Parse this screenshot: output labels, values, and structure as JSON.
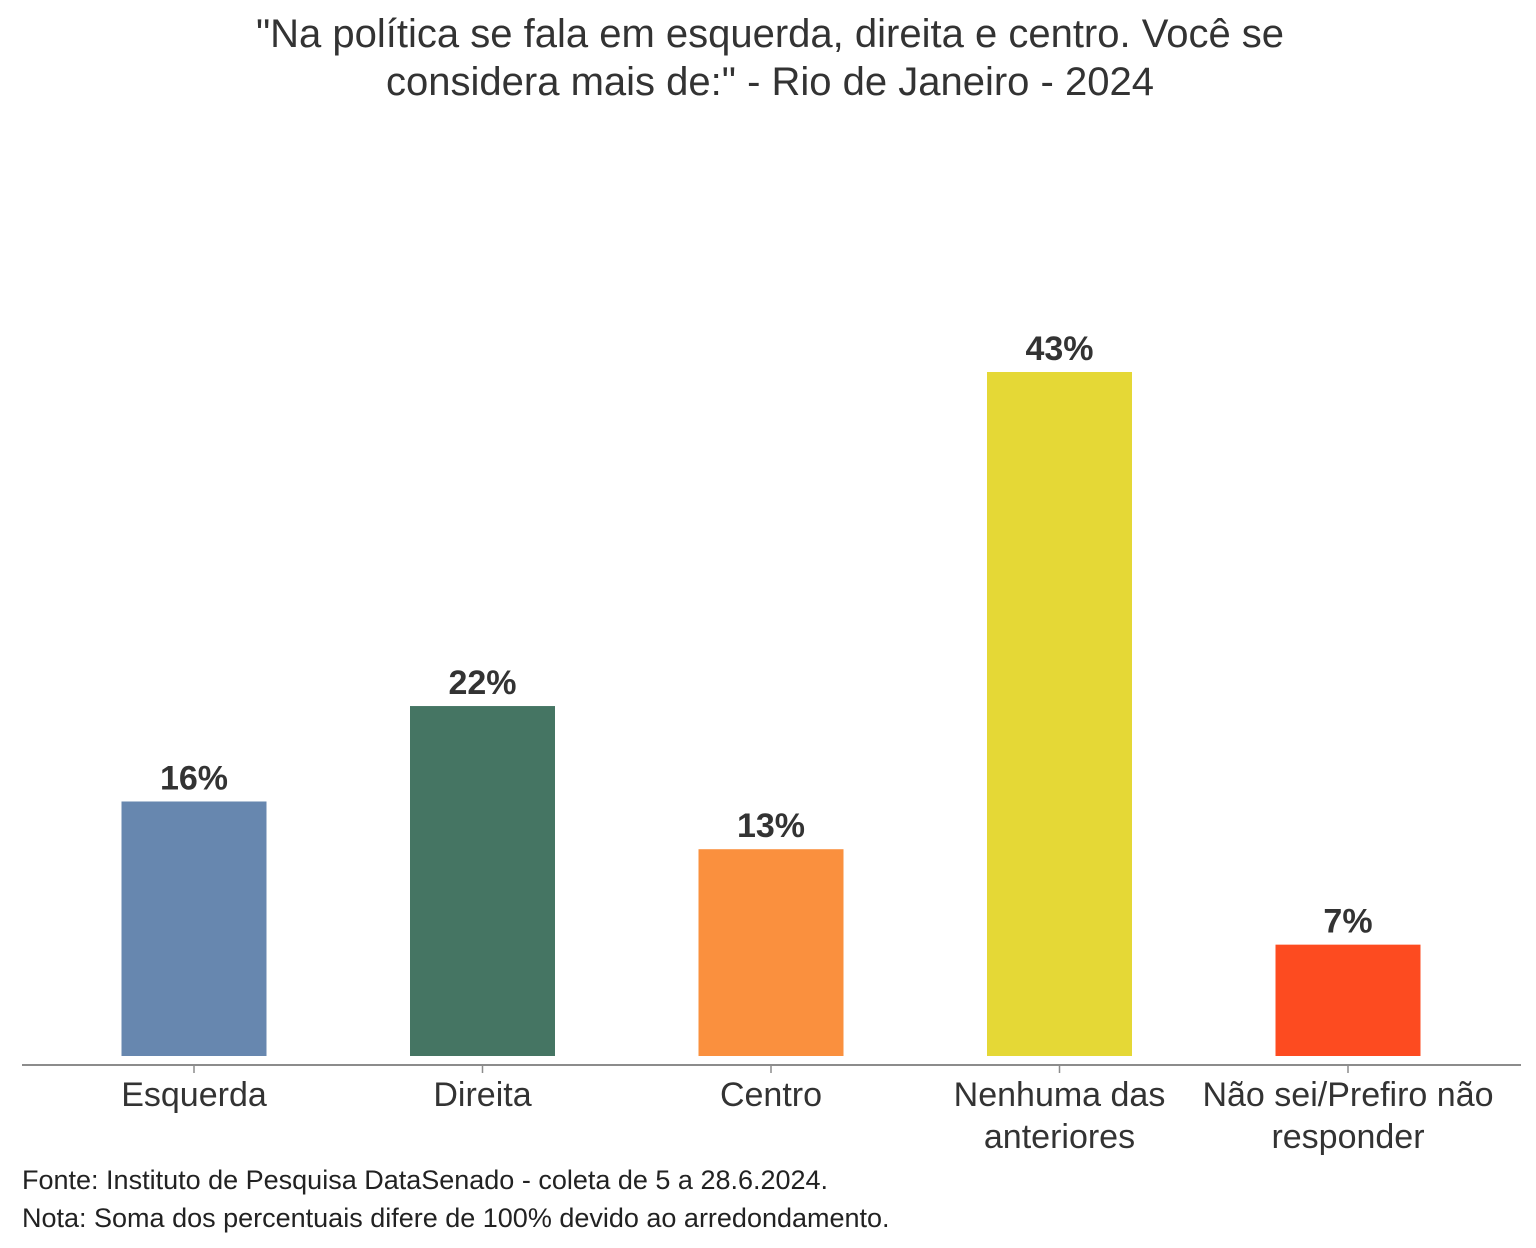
{
  "chart_data": {
    "type": "bar",
    "title_lines": [
      "\"Na política se fala em esquerda, direita e centro. Você se",
      "considera mais de:\" - Rio de Janeiro - 2024"
    ],
    "categories": [
      [
        "Esquerda"
      ],
      [
        "Direita"
      ],
      [
        "Centro"
      ],
      [
        "Nenhuma das",
        "anteriores"
      ],
      [
        "Não sei/Prefiro não",
        "responder"
      ]
    ],
    "values": [
      16,
      22,
      13,
      43,
      7
    ],
    "data_labels": [
      "16%",
      "22%",
      "13%",
      "43%",
      "7%"
    ],
    "colors": [
      "#6787af",
      "#457563",
      "#fa903e",
      "#e5d836",
      "#fd4b20"
    ],
    "xlabel": "",
    "ylabel": "",
    "ylim": [
      0,
      43
    ],
    "grid": false,
    "legend": "none",
    "y_axis_visible": false
  },
  "footer": {
    "source": "Fonte: Instituto de Pesquisa DataSenado - coleta de 5 a 28.6.2024.",
    "note": "Nota: Soma dos percentuais difere de 100% devido ao arredondamento."
  }
}
